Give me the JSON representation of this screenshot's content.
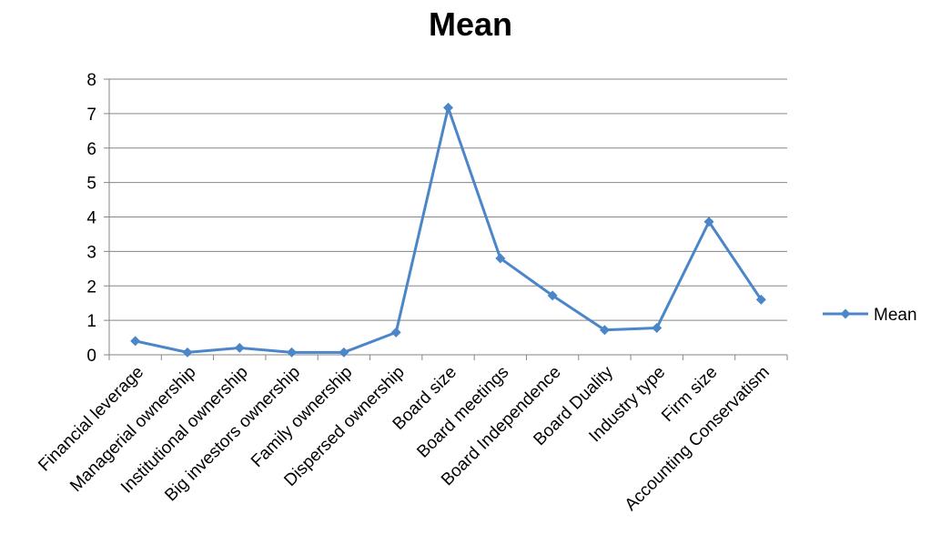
{
  "chart_data": {
    "type": "line",
    "title": "Mean",
    "categories": [
      "Financial leverage",
      "Managerial ownership",
      "Institutional ownership",
      "Big investors ownership",
      "Family ownership",
      "Dispersed ownership",
      "Board size",
      "Board meetings",
      "Board Independence",
      "Board Duality",
      "Industry type",
      "Firm size",
      "Accounting Conservatism"
    ],
    "series": [
      {
        "name": "Mean",
        "values": [
          0.4,
          0.07,
          0.2,
          0.07,
          0.07,
          0.65,
          7.17,
          2.8,
          1.72,
          0.72,
          0.78,
          3.86,
          1.6
        ]
      }
    ],
    "ylim": [
      0,
      8
    ],
    "yticks": [
      "0",
      "1",
      "2",
      "3",
      "4",
      "5",
      "6",
      "7",
      "8"
    ],
    "grid": true,
    "legend": "right",
    "colors": {
      "series": "#4a86c8",
      "grid": "#868686",
      "axis": "#868686"
    }
  }
}
